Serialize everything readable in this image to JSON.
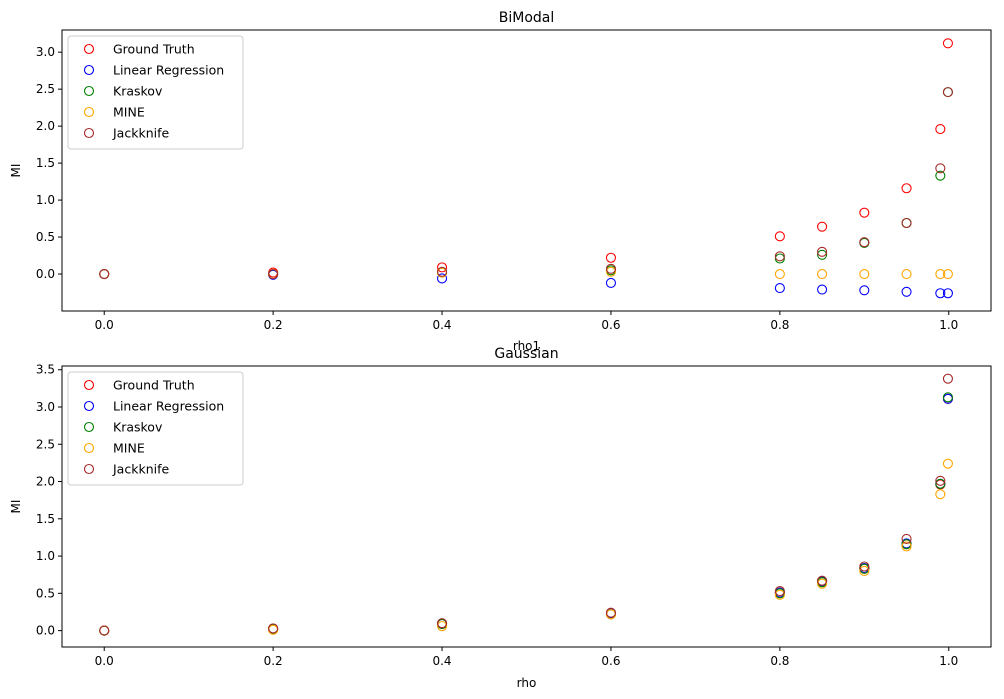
{
  "chart_data": [
    {
      "type": "scatter",
      "title": "BiModal",
      "xlabel": "rho1",
      "ylabel": "MI",
      "xlim": [
        -0.05,
        1.05
      ],
      "ylim": [
        -0.5,
        3.3
      ],
      "xticks": [
        "0.0",
        "0.2",
        "0.4",
        "0.6",
        "0.8",
        "1.0"
      ],
      "xtick_values": [
        0.0,
        0.2,
        0.4,
        0.6,
        0.8,
        1.0
      ],
      "yticks": [
        "0.0",
        "0.5",
        "1.0",
        "1.5",
        "2.0",
        "2.5",
        "3.0"
      ],
      "ytick_values": [
        0.0,
        0.5,
        1.0,
        1.5,
        2.0,
        2.5,
        3.0
      ],
      "legend_position": "upper-left",
      "x": [
        0.0,
        0.2,
        0.4,
        0.6,
        0.8,
        0.85,
        0.9,
        0.95,
        0.99,
        0.999
      ],
      "series": [
        {
          "name": "Ground Truth",
          "color": "#ff0000",
          "values": [
            0.0,
            0.02,
            0.09,
            0.22,
            0.51,
            0.64,
            0.83,
            1.16,
            1.96,
            3.12
          ]
        },
        {
          "name": "Linear Regression",
          "color": "#0000ff",
          "values": [
            0.0,
            -0.01,
            -0.06,
            -0.12,
            -0.19,
            -0.21,
            -0.22,
            -0.24,
            -0.26,
            -0.26
          ]
        },
        {
          "name": "Kraskov",
          "color": "#008000",
          "values": [
            0.0,
            0.0,
            0.02,
            0.05,
            0.21,
            0.26,
            0.42,
            0.69,
            1.33,
            2.46
          ]
        },
        {
          "name": "MINE",
          "color": "#ffa500",
          "values": [
            0.0,
            0.0,
            0.02,
            0.03,
            0.0,
            0.0,
            0.0,
            0.0,
            0.0,
            0.0
          ]
        },
        {
          "name": "Jackknife",
          "color": "#a52a2a",
          "values": [
            0.0,
            0.0,
            0.03,
            0.07,
            0.24,
            0.3,
            0.43,
            0.69,
            1.43,
            2.46
          ]
        }
      ]
    },
    {
      "type": "scatter",
      "title": "Gaussian",
      "xlabel": "rho",
      "ylabel": "MI",
      "xlim": [
        -0.05,
        1.05
      ],
      "ylim": [
        -0.22,
        3.55
      ],
      "xticks": [
        "0.0",
        "0.2",
        "0.4",
        "0.6",
        "0.8",
        "1.0"
      ],
      "xtick_values": [
        0.0,
        0.2,
        0.4,
        0.6,
        0.8,
        1.0
      ],
      "yticks": [
        "0.0",
        "0.5",
        "1.0",
        "1.5",
        "2.0",
        "2.5",
        "3.0",
        "3.5"
      ],
      "ytick_values": [
        0.0,
        0.5,
        1.0,
        1.5,
        2.0,
        2.5,
        3.0,
        3.5
      ],
      "legend_position": "upper-left",
      "x": [
        0.0,
        0.2,
        0.4,
        0.6,
        0.8,
        0.85,
        0.9,
        0.95,
        0.99,
        0.999
      ],
      "series": [
        {
          "name": "Ground Truth",
          "color": "#ff0000",
          "values": [
            0.0,
            0.02,
            0.09,
            0.22,
            0.51,
            0.66,
            0.83,
            1.16,
            1.96,
            3.11
          ]
        },
        {
          "name": "Linear Regression",
          "color": "#0000ff",
          "values": [
            0.0,
            0.02,
            0.09,
            0.23,
            0.51,
            0.66,
            0.84,
            1.17,
            1.97,
            3.11
          ]
        },
        {
          "name": "Kraskov",
          "color": "#008000",
          "values": [
            0.0,
            0.02,
            0.09,
            0.22,
            0.5,
            0.65,
            0.83,
            1.16,
            1.97,
            3.13
          ]
        },
        {
          "name": "MINE",
          "color": "#ffa500",
          "values": [
            0.0,
            0.01,
            0.06,
            0.22,
            0.48,
            0.63,
            0.8,
            1.13,
            1.83,
            2.24
          ]
        },
        {
          "name": "Jackknife",
          "color": "#a52a2a",
          "values": [
            0.0,
            0.03,
            0.1,
            0.24,
            0.53,
            0.67,
            0.86,
            1.23,
            2.01,
            3.38
          ]
        }
      ]
    }
  ]
}
